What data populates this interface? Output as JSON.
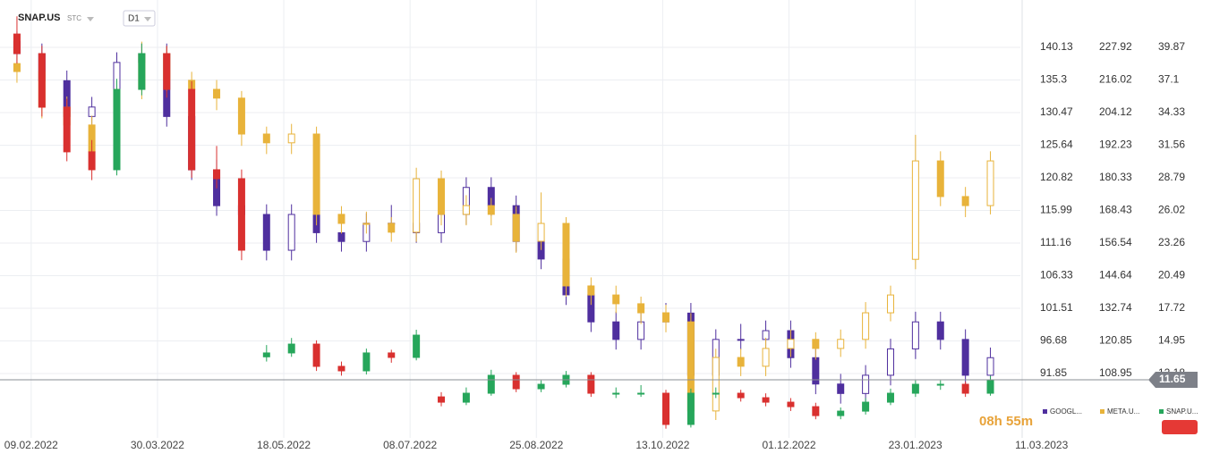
{
  "header": {
    "symbol": "SNAP.US",
    "market": "STC",
    "interval": "D1"
  },
  "countdown": "08h 55m",
  "chart_data": {
    "type": "candlestick",
    "xlim": [
      -0.5,
      40.2
    ],
    "xticks": [
      {
        "value": 0.57,
        "label": "09.02.2022"
      },
      {
        "value": 5.63,
        "label": "30.03.2022"
      },
      {
        "value": 10.69,
        "label": "18.05.2022"
      },
      {
        "value": 15.75,
        "label": "08.07.2022"
      },
      {
        "value": 20.81,
        "label": "25.08.2022"
      },
      {
        "value": 25.87,
        "label": "13.10.2022"
      },
      {
        "value": 30.93,
        "label": "01.12.2022"
      },
      {
        "value": 35.99,
        "label": "23.01.2023"
      },
      {
        "value": 41.05,
        "label": "11.03.2023"
      }
    ],
    "ylim": [
      82.33,
      145.82
    ],
    "yticks": [
      140.13,
      135.3,
      130.47,
      125.64,
      120.82,
      115.99,
      111.16,
      106.33,
      101.51,
      96.68,
      91.85
    ],
    "y2lim": [
      85.48,
      241.93
    ],
    "y2ticks": [
      227.92,
      216.02,
      204.12,
      192.23,
      180.33,
      168.43,
      156.54,
      144.64,
      132.74,
      120.85,
      108.95
    ],
    "y3lim": [
      6.72,
      43.13
    ],
    "y3ticks": [
      39.87,
      37.1,
      34.33,
      31.56,
      28.79,
      26.02,
      23.26,
      20.49,
      17.72,
      14.95,
      12.18
    ],
    "grid": true,
    "last_price": 11.65,
    "series": [
      {
        "name": "GOOGL...",
        "axis": "y",
        "color": "#4f2f9e",
        "values": [
          [
            141.0,
            142.5,
            137.7,
            139.2
          ],
          [
            139.2,
            140.7,
            133.7,
            135.2
          ],
          [
            135.2,
            136.7,
            128.4,
            129.9
          ],
          [
            129.9,
            132.8,
            128.4,
            131.3
          ],
          [
            131.3,
            139.4,
            129.8,
            137.9
          ],
          [
            137.9,
            140.7,
            136.4,
            139.2
          ],
          [
            139.2,
            140.7,
            128.4,
            129.9
          ],
          [
            129.9,
            131.4,
            120.5,
            122.0
          ],
          [
            122.0,
            123.5,
            115.2,
            116.7
          ],
          [
            116.7,
            118.2,
            113.9,
            115.4
          ],
          [
            115.4,
            116.9,
            108.6,
            110.1
          ],
          [
            110.1,
            116.9,
            108.6,
            115.4
          ],
          [
            115.4,
            116.9,
            111.2,
            112.7
          ],
          [
            112.7,
            114.2,
            109.9,
            111.4
          ],
          [
            111.4,
            115.6,
            109.9,
            114.1
          ],
          [
            114.1,
            116.8,
            112.6,
            114.1
          ],
          [
            114.1,
            115.6,
            111.2,
            112.7
          ],
          [
            112.7,
            116.9,
            111.2,
            115.4
          ],
          [
            115.4,
            120.9,
            113.9,
            119.4
          ],
          [
            119.4,
            120.9,
            115.2,
            116.7
          ],
          [
            116.7,
            118.2,
            109.9,
            111.4
          ],
          [
            111.4,
            112.9,
            107.3,
            108.8
          ],
          [
            108.8,
            110.3,
            102.0,
            103.5
          ],
          [
            103.5,
            105.0,
            98.0,
            99.5
          ],
          [
            99.5,
            101.0,
            95.4,
            96.9
          ],
          [
            96.9,
            101.0,
            95.4,
            99.5
          ],
          [
            99.5,
            102.3,
            98.0,
            100.8
          ],
          [
            100.8,
            102.3,
            90.1,
            91.6
          ],
          [
            91.6,
            98.4,
            90.1,
            96.9
          ],
          [
            96.9,
            99.2,
            95.4,
            96.9
          ],
          [
            96.9,
            99.7,
            95.4,
            98.2
          ],
          [
            98.2,
            99.7,
            92.7,
            94.2
          ],
          [
            94.2,
            95.7,
            88.8,
            90.3
          ],
          [
            90.3,
            91.8,
            87.4,
            88.9
          ],
          [
            88.9,
            93.1,
            87.4,
            91.6
          ],
          [
            91.6,
            97.0,
            90.1,
            95.5
          ],
          [
            95.5,
            101.0,
            94.0,
            99.5
          ],
          [
            99.5,
            101.0,
            95.4,
            96.9
          ],
          [
            96.9,
            98.4,
            90.1,
            91.6
          ],
          [
            91.6,
            95.7,
            90.1,
            94.2
          ]
        ]
      },
      {
        "name": "META.U...",
        "axis": "y2",
        "color": "#e8b33a",
        "values": [
          [
            222,
            225,
            215,
            219.1
          ],
          [
            219.1,
            222,
            202,
            206.1
          ],
          [
            206.1,
            210,
            196,
            199.6
          ],
          [
            199.6,
            203,
            186,
            189.8
          ],
          [
            189.8,
            216,
            186,
            212.6
          ],
          [
            212.6,
            230,
            209,
            225.6
          ],
          [
            225.6,
            228,
            212,
            215.9
          ],
          [
            215.9,
            219,
            209,
            212.6
          ],
          [
            212.6,
            216,
            205,
            209.4
          ],
          [
            209.4,
            212,
            192,
            196.3
          ],
          [
            196.3,
            199,
            189,
            193.1
          ],
          [
            193.1,
            200,
            189,
            196.3
          ],
          [
            196.3,
            199,
            163,
            167.0
          ],
          [
            167.0,
            170,
            160,
            163.7
          ],
          [
            163.7,
            168,
            160,
            163.7
          ],
          [
            163.7,
            166,
            157,
            160.5
          ],
          [
            160.5,
            184,
            157,
            180.0
          ],
          [
            180.0,
            183,
            163,
            167.0
          ],
          [
            167.0,
            174,
            163,
            170.2
          ],
          [
            170.2,
            173,
            163,
            167.0
          ],
          [
            167.0,
            170,
            153,
            157.2
          ],
          [
            157.2,
            175,
            154,
            163.7
          ],
          [
            163.7,
            166,
            137,
            140.9
          ],
          [
            140.9,
            144,
            134,
            137.6
          ],
          [
            137.6,
            141,
            131,
            134.4
          ],
          [
            134.4,
            137,
            127,
            131.1
          ],
          [
            131.1,
            134,
            124,
            127.8
          ],
          [
            127.8,
            131,
            91,
            95.3
          ],
          [
            95.3,
            118,
            92,
            114.8
          ],
          [
            114.8,
            118,
            108,
            111.6
          ],
          [
            111.6,
            122,
            108,
            118.1
          ],
          [
            118.1,
            125,
            115,
            121.4
          ],
          [
            121.4,
            124,
            114,
            118.1
          ],
          [
            118.1,
            125,
            115,
            121.4
          ],
          [
            121.4,
            135,
            118,
            131.1
          ],
          [
            131.1,
            141,
            128,
            137.6
          ],
          [
            150.6,
            196,
            147,
            186.5
          ],
          [
            186.5,
            190,
            170,
            173.5
          ],
          [
            173.5,
            177,
            166,
            170.2
          ],
          [
            170.2,
            190,
            167,
            186.5
          ]
        ]
      },
      {
        "name": "SNAP.U...",
        "axis": "y3",
        "color": "#26a65b",
        "down_color": "#d9302f",
        "values": [
          [
            41.0,
            42.5,
            38.5,
            39.34
          ],
          [
            39.34,
            40.0,
            34.0,
            34.79
          ],
          [
            34.79,
            35.5,
            30.2,
            31.0
          ],
          [
            31.0,
            32.0,
            28.6,
            29.48
          ],
          [
            29.48,
            37.2,
            29.0,
            36.3
          ],
          [
            36.3,
            40.2,
            35.8,
            39.34
          ],
          [
            39.34,
            40.0,
            35.6,
            36.3
          ],
          [
            36.3,
            37.0,
            28.8,
            29.48
          ],
          [
            29.48,
            31.5,
            27.9,
            28.72
          ],
          [
            28.72,
            29.5,
            21.8,
            22.65
          ],
          [
            13.6,
            14.6,
            13.2,
            13.93
          ],
          [
            13.93,
            15.2,
            13.6,
            14.68
          ],
          [
            14.68,
            15.0,
            12.4,
            12.79
          ],
          [
            12.79,
            13.2,
            12.0,
            12.41
          ],
          [
            12.41,
            14.3,
            12.1,
            13.93
          ],
          [
            13.93,
            14.2,
            13.1,
            13.55
          ],
          [
            13.55,
            15.9,
            13.3,
            15.44
          ],
          [
            10.2,
            10.6,
            9.4,
            9.75
          ],
          [
            9.75,
            11.0,
            9.5,
            10.51
          ],
          [
            10.51,
            12.5,
            10.3,
            12.03
          ],
          [
            12.03,
            12.3,
            10.6,
            10.89
          ],
          [
            10.89,
            11.6,
            10.6,
            11.27
          ],
          [
            11.27,
            12.4,
            11.0,
            12.03
          ],
          [
            12.03,
            12.3,
            10.2,
            10.51
          ],
          [
            10.51,
            11.0,
            10.1,
            10.51
          ],
          [
            10.51,
            11.2,
            10.2,
            10.51
          ],
          [
            10.51,
            10.8,
            7.5,
            7.86
          ],
          [
            7.86,
            10.9,
            7.6,
            10.51
          ],
          [
            10.51,
            11.0,
            10.1,
            10.51
          ],
          [
            10.51,
            10.8,
            9.8,
            10.13
          ],
          [
            10.13,
            10.5,
            9.4,
            9.75
          ],
          [
            9.75,
            10.1,
            9.0,
            9.37
          ],
          [
            9.37,
            9.7,
            8.3,
            8.61
          ],
          [
            8.61,
            9.3,
            8.3,
            8.99
          ],
          [
            8.99,
            10.1,
            8.7,
            9.75
          ],
          [
            9.75,
            10.9,
            9.5,
            10.51
          ],
          [
            10.51,
            11.6,
            10.2,
            11.27
          ],
          [
            11.27,
            11.6,
            10.8,
            11.27
          ],
          [
            11.27,
            11.5,
            10.2,
            10.51
          ],
          [
            10.51,
            12.0,
            10.3,
            11.65
          ]
        ]
      }
    ]
  }
}
